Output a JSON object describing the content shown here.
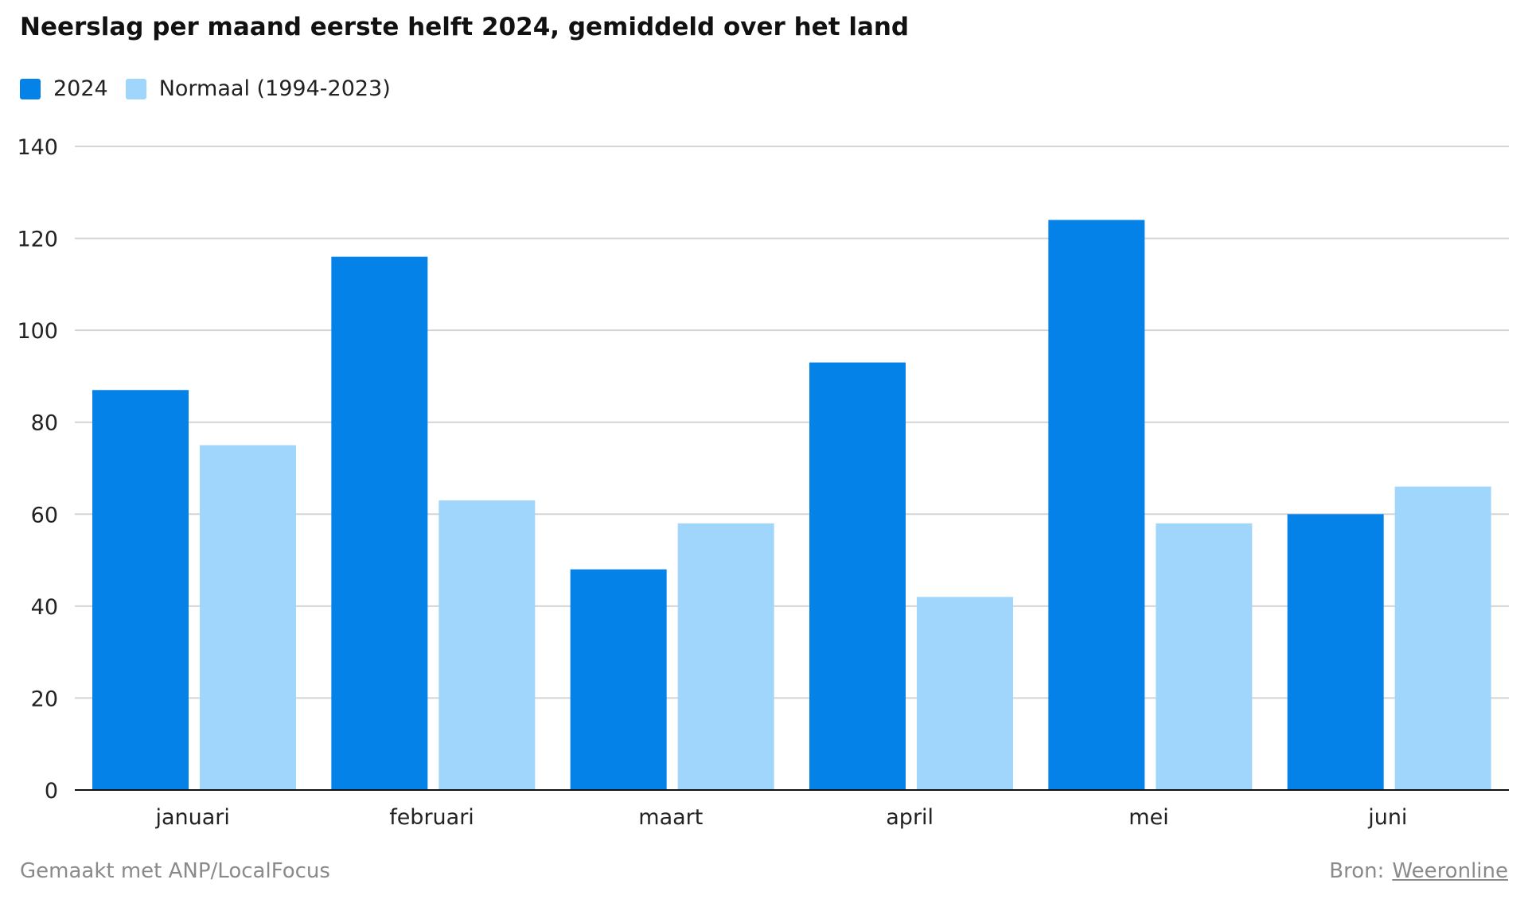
{
  "chart_data": {
    "type": "bar",
    "title": "Neerslag per maand eerste helft 2024, gemiddeld over het land",
    "categories": [
      "januari",
      "februari",
      "maart",
      "april",
      "mei",
      "juni"
    ],
    "series": [
      {
        "name": "2024",
        "color": "#0582e8",
        "values": [
          87,
          116,
          48,
          93,
          124,
          60
        ]
      },
      {
        "name": "Normaal (1994-2023)",
        "color": "#a0d6fc",
        "values": [
          75,
          63,
          58,
          42,
          58,
          66
        ]
      }
    ],
    "ylim": [
      0,
      140
    ],
    "yticks": [
      0,
      20,
      40,
      60,
      80,
      100,
      120,
      140
    ],
    "grid": true,
    "legend_position": "top-left"
  },
  "footer": {
    "made_with": "Gemaakt met ANP/LocalFocus",
    "source_label": "Bron:",
    "source_link": "Weeronline"
  }
}
